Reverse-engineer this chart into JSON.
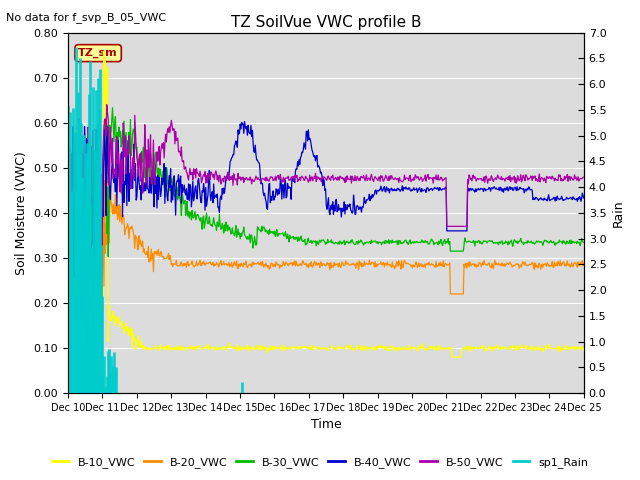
{
  "title": "TZ SoilVue VWC profile B",
  "subtitle": "No data for f_svp_B_05_VWC",
  "xlabel": "Time",
  "ylabel": "Soil Moisture (VWC)",
  "ylabel_right": "Rain",
  "ylim_left": [
    0.0,
    0.8
  ],
  "ylim_right": [
    0.0,
    7.0
  ],
  "yticks_left": [
    0.0,
    0.1,
    0.2,
    0.3,
    0.4,
    0.5,
    0.6,
    0.7,
    0.8
  ],
  "yticks_right": [
    0.0,
    0.5,
    1.0,
    1.5,
    2.0,
    2.5,
    3.0,
    3.5,
    4.0,
    4.5,
    5.0,
    5.5,
    6.0,
    6.5,
    7.0
  ],
  "xlim": [
    0,
    15
  ],
  "colors": {
    "B10": "#ffff00",
    "B20": "#ff8c00",
    "B30": "#00bb00",
    "B40": "#0000cc",
    "B50": "#aa00aa",
    "Rain": "#00cccc"
  },
  "bg_color": "#dcdcdc",
  "annotation_box_color": "#ffff99",
  "annotation_text_color": "#aa0000",
  "annotation_text": "TZ_sm",
  "legend_labels": [
    "B-10_VWC",
    "B-20_VWC",
    "B-30_VWC",
    "B-40_VWC",
    "B-50_VWC",
    "sp1_Rain"
  ],
  "xtick_labels": [
    "Dec 10",
    "Dec 11",
    "Dec 12",
    "Dec 13",
    "Dec 14",
    "Dec 15",
    "Dec 16",
    "Dec 17",
    "Dec 18",
    "Dec 19",
    "Dec 20",
    "Dec 21",
    "Dec 22",
    "Dec 23",
    "Dec 24",
    "Dec 25"
  ]
}
